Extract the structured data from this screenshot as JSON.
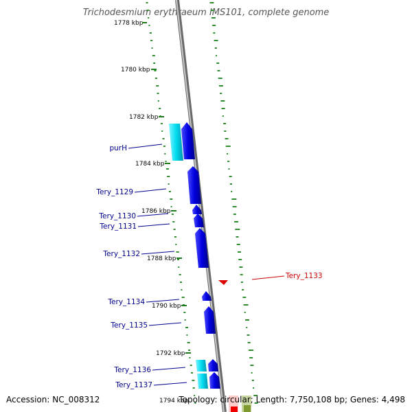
{
  "title": "Trichodesmium erythraeum IMS101, complete genome",
  "footer": {
    "accession": "Accession: NC_008312",
    "topology": "Topology: circular; Length: 7,750,108 bp; Genes: 4,498"
  },
  "kbp_labels": [
    "1778 kbp",
    "1780 kbp",
    "1782 kbp",
    "1784 kbp",
    "1786 kbp",
    "1788 kbp",
    "1790 kbp",
    "1792 kbp",
    "1794 kbp"
  ],
  "genes": [
    {
      "name": "purH",
      "color": "#0000dd"
    },
    {
      "name": "Tery_1129",
      "color": "#0000dd"
    },
    {
      "name": "Tery_1130",
      "color": "#0000dd"
    },
    {
      "name": "Tery_1131",
      "color": "#0000dd"
    },
    {
      "name": "Tery_1132",
      "color": "#0000dd"
    },
    {
      "name": "Tery_1133",
      "color": "#cc0000"
    },
    {
      "name": "Tery_1134",
      "color": "#0000dd"
    },
    {
      "name": "Tery_1135",
      "color": "#0000dd"
    },
    {
      "name": "Tery_1136",
      "color": "#0000dd"
    },
    {
      "name": "Tery_1137",
      "color": "#0000dd"
    }
  ],
  "colors": {
    "backbone": "#8c8c8c",
    "gc_dots": "#2e8b2e",
    "forward_gene": "#0000dd",
    "reverse_gene": "#dd0000",
    "rna_gene": "#00d8ee"
  }
}
